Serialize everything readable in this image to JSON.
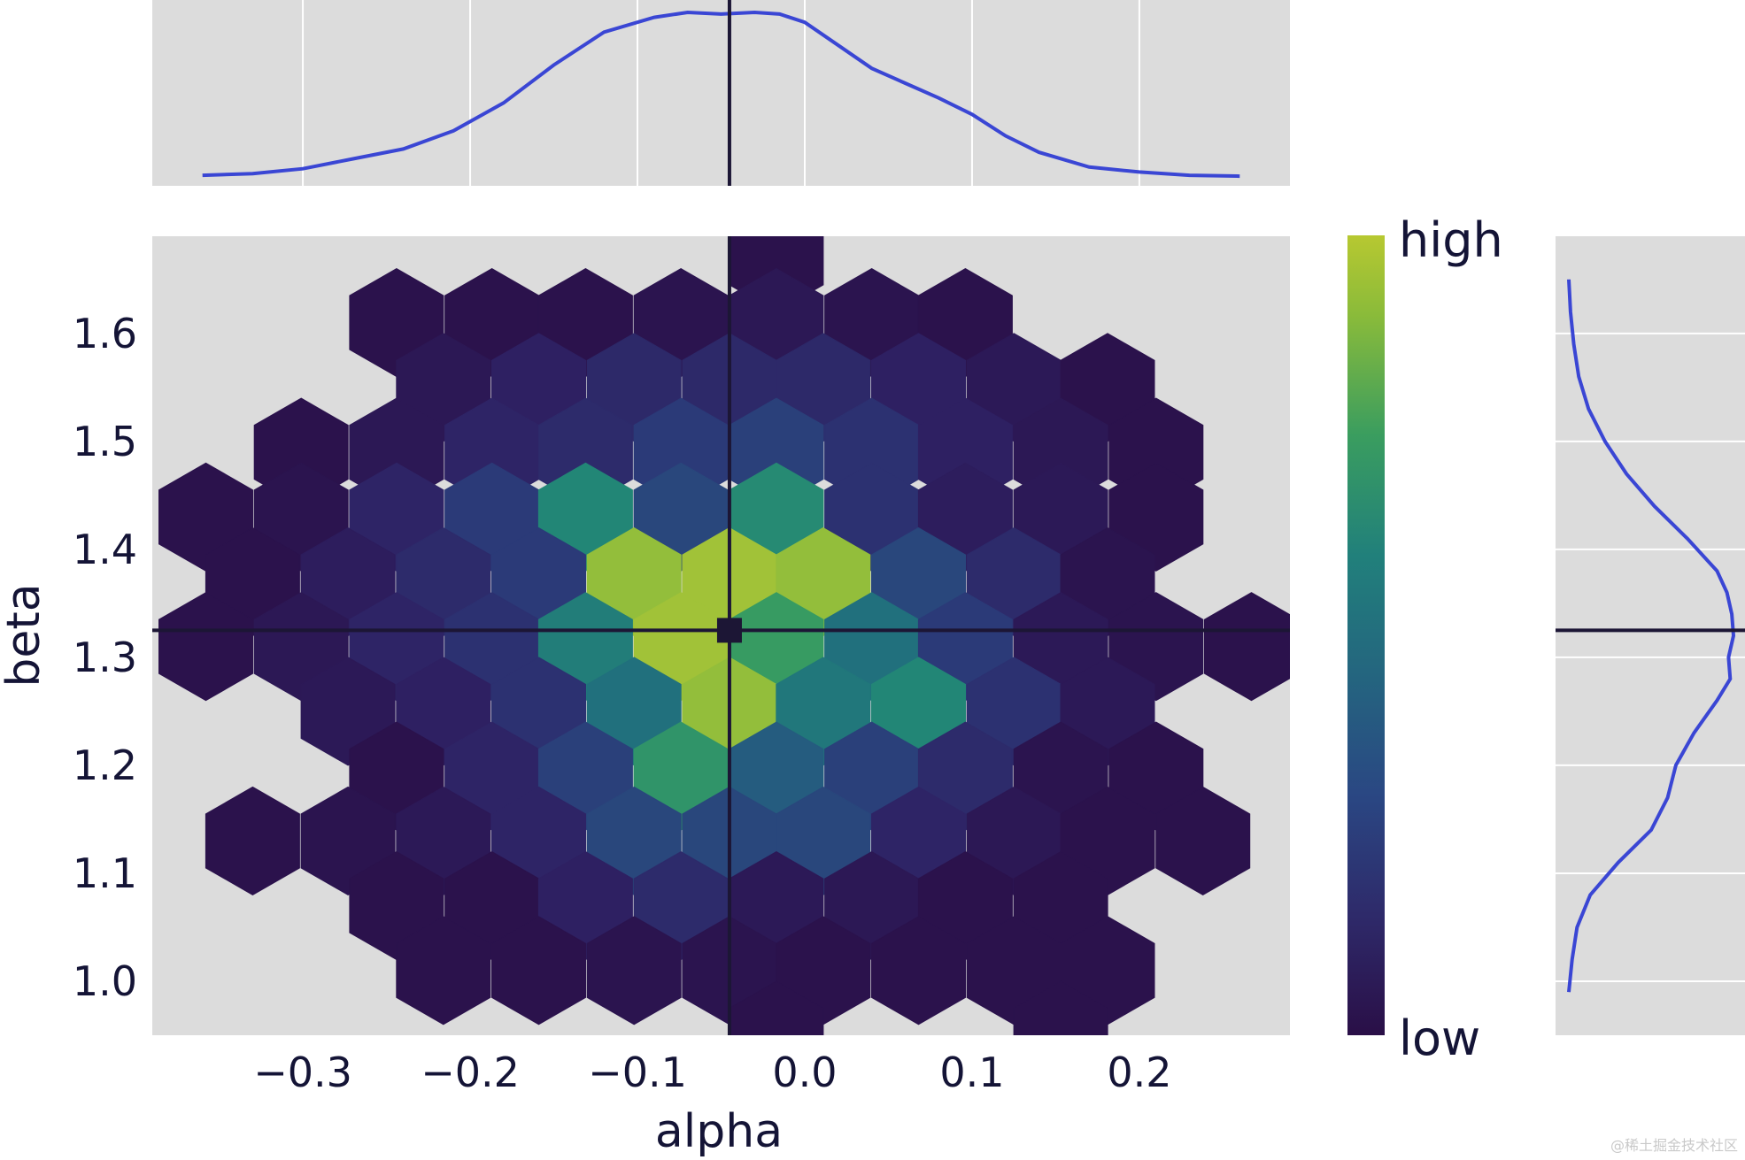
{
  "chart_data": {
    "type": "hexbin",
    "title": "",
    "xlabel": "alpha",
    "ylabel": "beta",
    "xlim": [
      -0.39,
      0.29
    ],
    "ylim": [
      0.95,
      1.69
    ],
    "x_ticks": [
      -0.3,
      -0.2,
      -0.1,
      0.0,
      0.1,
      0.2
    ],
    "x_tick_labels": [
      "−0.3",
      "−0.2",
      "−0.1",
      "0.0",
      "0.1",
      "0.2"
    ],
    "y_ticks": [
      1.0,
      1.1,
      1.2,
      1.3,
      1.4,
      1.5,
      1.6
    ],
    "y_tick_labels": [
      "1.0",
      "1.1",
      "1.2",
      "1.3",
      "1.4",
      "1.5",
      "1.6"
    ],
    "reference_point": {
      "alpha": -0.045,
      "beta": 1.325
    },
    "colorbar": {
      "high_label": "high",
      "low_label": "low",
      "colormap": "viridis"
    },
    "hexbins": [
      {
        "alpha": -0.017,
        "beta": 1.67,
        "density": 0.02
      },
      {
        "alpha": -0.244,
        "beta": 1.61,
        "density": 0.02
      },
      {
        "alpha": -0.187,
        "beta": 1.61,
        "density": 0.02
      },
      {
        "alpha": -0.131,
        "beta": 1.61,
        "density": 0.02
      },
      {
        "alpha": -0.074,
        "beta": 1.61,
        "density": 0.03
      },
      {
        "alpha": -0.017,
        "beta": 1.61,
        "density": 0.05
      },
      {
        "alpha": 0.04,
        "beta": 1.61,
        "density": 0.03
      },
      {
        "alpha": 0.096,
        "beta": 1.61,
        "density": 0.02
      },
      {
        "alpha": -0.216,
        "beta": 1.55,
        "density": 0.05
      },
      {
        "alpha": -0.159,
        "beta": 1.55,
        "density": 0.1
      },
      {
        "alpha": -0.102,
        "beta": 1.55,
        "density": 0.14
      },
      {
        "alpha": -0.045,
        "beta": 1.55,
        "density": 0.14
      },
      {
        "alpha": 0.011,
        "beta": 1.55,
        "density": 0.14
      },
      {
        "alpha": 0.068,
        "beta": 1.55,
        "density": 0.1
      },
      {
        "alpha": 0.125,
        "beta": 1.55,
        "density": 0.06
      },
      {
        "alpha": 0.181,
        "beta": 1.55,
        "density": 0.02
      },
      {
        "alpha": -0.301,
        "beta": 1.49,
        "density": 0.02
      },
      {
        "alpha": -0.244,
        "beta": 1.49,
        "density": 0.05
      },
      {
        "alpha": -0.187,
        "beta": 1.49,
        "density": 0.12
      },
      {
        "alpha": -0.131,
        "beta": 1.49,
        "density": 0.15
      },
      {
        "alpha": -0.074,
        "beta": 1.49,
        "density": 0.22
      },
      {
        "alpha": -0.017,
        "beta": 1.49,
        "density": 0.25
      },
      {
        "alpha": 0.04,
        "beta": 1.49,
        "density": 0.18
      },
      {
        "alpha": 0.096,
        "beta": 1.49,
        "density": 0.1
      },
      {
        "alpha": 0.153,
        "beta": 1.49,
        "density": 0.05
      },
      {
        "alpha": 0.21,
        "beta": 1.49,
        "density": 0.02
      },
      {
        "alpha": -0.358,
        "beta": 1.43,
        "density": 0.02
      },
      {
        "alpha": -0.301,
        "beta": 1.43,
        "density": 0.03
      },
      {
        "alpha": -0.244,
        "beta": 1.43,
        "density": 0.12
      },
      {
        "alpha": -0.187,
        "beta": 1.43,
        "density": 0.22
      },
      {
        "alpha": -0.131,
        "beta": 1.43,
        "density": 0.6
      },
      {
        "alpha": -0.074,
        "beta": 1.43,
        "density": 0.28
      },
      {
        "alpha": -0.017,
        "beta": 1.43,
        "density": 0.62
      },
      {
        "alpha": 0.04,
        "beta": 1.43,
        "density": 0.18
      },
      {
        "alpha": 0.096,
        "beta": 1.43,
        "density": 0.08
      },
      {
        "alpha": 0.153,
        "beta": 1.43,
        "density": 0.06
      },
      {
        "alpha": 0.21,
        "beta": 1.43,
        "density": 0.02
      },
      {
        "alpha": -0.33,
        "beta": 1.37,
        "density": 0.02
      },
      {
        "alpha": -0.273,
        "beta": 1.37,
        "density": 0.08
      },
      {
        "alpha": -0.216,
        "beta": 1.37,
        "density": 0.15
      },
      {
        "alpha": -0.159,
        "beta": 1.37,
        "density": 0.22
      },
      {
        "alpha": -0.102,
        "beta": 1.37,
        "density": 0.92
      },
      {
        "alpha": -0.045,
        "beta": 1.37,
        "density": 0.95
      },
      {
        "alpha": 0.011,
        "beta": 1.37,
        "density": 0.92
      },
      {
        "alpha": 0.068,
        "beta": 1.37,
        "density": 0.28
      },
      {
        "alpha": 0.125,
        "beta": 1.37,
        "density": 0.15
      },
      {
        "alpha": 0.181,
        "beta": 1.37,
        "density": 0.03
      },
      {
        "alpha": -0.358,
        "beta": 1.31,
        "density": 0.02
      },
      {
        "alpha": -0.301,
        "beta": 1.31,
        "density": 0.05
      },
      {
        "alpha": -0.244,
        "beta": 1.31,
        "density": 0.12
      },
      {
        "alpha": -0.187,
        "beta": 1.31,
        "density": 0.18
      },
      {
        "alpha": -0.131,
        "beta": 1.31,
        "density": 0.55
      },
      {
        "alpha": -0.074,
        "beta": 1.31,
        "density": 0.95
      },
      {
        "alpha": -0.017,
        "beta": 1.31,
        "density": 0.72
      },
      {
        "alpha": 0.04,
        "beta": 1.31,
        "density": 0.48
      },
      {
        "alpha": 0.096,
        "beta": 1.31,
        "density": 0.22
      },
      {
        "alpha": 0.153,
        "beta": 1.31,
        "density": 0.06
      },
      {
        "alpha": 0.21,
        "beta": 1.31,
        "density": 0.03
      },
      {
        "alpha": 0.267,
        "beta": 1.31,
        "density": 0.02
      },
      {
        "alpha": -0.273,
        "beta": 1.25,
        "density": 0.06
      },
      {
        "alpha": -0.216,
        "beta": 1.25,
        "density": 0.1
      },
      {
        "alpha": -0.159,
        "beta": 1.25,
        "density": 0.18
      },
      {
        "alpha": -0.102,
        "beta": 1.25,
        "density": 0.48
      },
      {
        "alpha": -0.045,
        "beta": 1.25,
        "density": 0.92
      },
      {
        "alpha": 0.011,
        "beta": 1.25,
        "density": 0.52
      },
      {
        "alpha": 0.068,
        "beta": 1.25,
        "density": 0.6
      },
      {
        "alpha": 0.125,
        "beta": 1.25,
        "density": 0.18
      },
      {
        "alpha": 0.181,
        "beta": 1.25,
        "density": 0.06
      },
      {
        "alpha": -0.244,
        "beta": 1.19,
        "density": 0.02
      },
      {
        "alpha": -0.187,
        "beta": 1.19,
        "density": 0.12
      },
      {
        "alpha": -0.131,
        "beta": 1.19,
        "density": 0.25
      },
      {
        "alpha": -0.074,
        "beta": 1.19,
        "density": 0.68
      },
      {
        "alpha": -0.017,
        "beta": 1.19,
        "density": 0.38
      },
      {
        "alpha": 0.04,
        "beta": 1.19,
        "density": 0.25
      },
      {
        "alpha": 0.096,
        "beta": 1.19,
        "density": 0.15
      },
      {
        "alpha": 0.153,
        "beta": 1.19,
        "density": 0.03
      },
      {
        "alpha": 0.21,
        "beta": 1.19,
        "density": 0.02
      },
      {
        "alpha": -0.33,
        "beta": 1.13,
        "density": 0.02
      },
      {
        "alpha": -0.273,
        "beta": 1.13,
        "density": 0.03
      },
      {
        "alpha": -0.216,
        "beta": 1.13,
        "density": 0.06
      },
      {
        "alpha": -0.159,
        "beta": 1.13,
        "density": 0.12
      },
      {
        "alpha": -0.102,
        "beta": 1.13,
        "density": 0.28
      },
      {
        "alpha": -0.045,
        "beta": 1.13,
        "density": 0.28
      },
      {
        "alpha": 0.011,
        "beta": 1.13,
        "density": 0.28
      },
      {
        "alpha": 0.068,
        "beta": 1.13,
        "density": 0.12
      },
      {
        "alpha": 0.125,
        "beta": 1.13,
        "density": 0.05
      },
      {
        "alpha": 0.181,
        "beta": 1.13,
        "density": 0.02
      },
      {
        "alpha": 0.238,
        "beta": 1.13,
        "density": 0.02
      },
      {
        "alpha": -0.244,
        "beta": 1.07,
        "density": 0.02
      },
      {
        "alpha": -0.187,
        "beta": 1.07,
        "density": 0.02
      },
      {
        "alpha": -0.131,
        "beta": 1.07,
        "density": 0.1
      },
      {
        "alpha": -0.074,
        "beta": 1.07,
        "density": 0.15
      },
      {
        "alpha": -0.017,
        "beta": 1.07,
        "density": 0.06
      },
      {
        "alpha": 0.04,
        "beta": 1.07,
        "density": 0.05
      },
      {
        "alpha": 0.096,
        "beta": 1.07,
        "density": 0.02
      },
      {
        "alpha": 0.153,
        "beta": 1.07,
        "density": 0.02
      },
      {
        "alpha": -0.216,
        "beta": 1.01,
        "density": 0.02
      },
      {
        "alpha": -0.159,
        "beta": 1.01,
        "density": 0.02
      },
      {
        "alpha": -0.102,
        "beta": 1.01,
        "density": 0.03
      },
      {
        "alpha": -0.045,
        "beta": 1.01,
        "density": 0.03
      },
      {
        "alpha": 0.011,
        "beta": 1.01,
        "density": 0.02
      },
      {
        "alpha": 0.068,
        "beta": 1.01,
        "density": 0.02
      },
      {
        "alpha": 0.125,
        "beta": 1.01,
        "density": 0.02
      },
      {
        "alpha": 0.181,
        "beta": 1.01,
        "density": 0.02
      },
      {
        "alpha": -0.017,
        "beta": 0.95,
        "density": 0.02
      },
      {
        "alpha": 0.153,
        "beta": 0.95,
        "density": 0.02
      }
    ],
    "alpha_marginal_kde": {
      "x": [
        -0.36,
        -0.33,
        -0.3,
        -0.27,
        -0.24,
        -0.21,
        -0.18,
        -0.15,
        -0.12,
        -0.09,
        -0.07,
        -0.05,
        -0.03,
        -0.015,
        0.0,
        0.02,
        0.04,
        0.06,
        0.08,
        0.1,
        0.12,
        0.14,
        0.17,
        0.2,
        0.23,
        0.26
      ],
      "density": [
        0.01,
        0.02,
        0.05,
        0.11,
        0.17,
        0.28,
        0.45,
        0.68,
        0.88,
        0.97,
        1.0,
        0.99,
        1.0,
        0.99,
        0.94,
        0.8,
        0.66,
        0.57,
        0.48,
        0.38,
        0.25,
        0.15,
        0.06,
        0.03,
        0.01,
        0.005
      ]
    },
    "beta_marginal_kde": {
      "y": [
        0.99,
        1.02,
        1.05,
        1.08,
        1.11,
        1.14,
        1.17,
        1.2,
        1.23,
        1.26,
        1.28,
        1.3,
        1.32,
        1.34,
        1.36,
        1.38,
        1.41,
        1.44,
        1.47,
        1.5,
        1.53,
        1.56,
        1.59,
        1.62,
        1.65
      ],
      "density": [
        0.0,
        0.02,
        0.05,
        0.13,
        0.3,
        0.5,
        0.6,
        0.65,
        0.76,
        0.9,
        0.98,
        0.97,
        1.0,
        0.99,
        0.96,
        0.9,
        0.72,
        0.52,
        0.35,
        0.22,
        0.12,
        0.06,
        0.03,
        0.01,
        0.0
      ]
    },
    "kde_color": "#3a46d4"
  },
  "watermark": "@稀土掘金技术社区"
}
